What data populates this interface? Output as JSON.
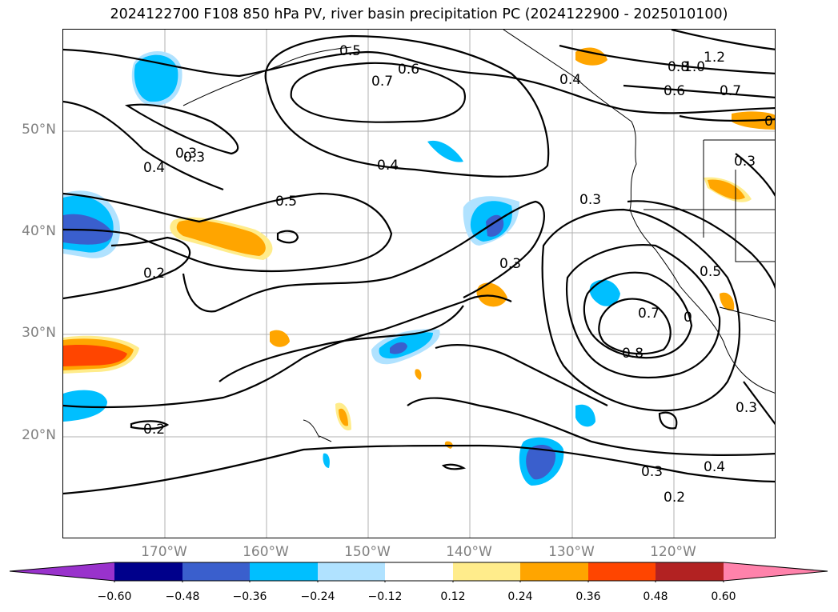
{
  "title": "2024122700 F108 850 hPa PV, river basin precipitation PC (2024122900 - 2025010100)",
  "latitude_labels": [
    "50°N",
    "40°N",
    "30°N",
    "20°N"
  ],
  "longitude_labels": [
    "170°W",
    "160°W",
    "150°W",
    "140°W",
    "130°W",
    "120°W"
  ],
  "pv_contour_labels": [
    "0.5",
    "0.6",
    "0.7",
    "0.4",
    "0.3",
    "0.4",
    "0.5",
    "0.2",
    "0.4",
    "0.3",
    "0.2",
    "0.3",
    "0.7",
    "0.8",
    "0.5",
    "0.3",
    "0.4",
    "0.3",
    "0.2",
    "0.8",
    "0.6",
    "0.7",
    "1.0",
    "1.2",
    "0.3",
    "0.3",
    "0",
    "0"
  ],
  "colorbar": {
    "ticks": [
      "−0.60",
      "−0.48",
      "−0.36",
      "−0.24",
      "−0.12",
      "0.12",
      "0.24",
      "0.36",
      "0.48",
      "0.60"
    ],
    "colors": [
      "#9932cc",
      "#00008b",
      "#3a5fcd",
      "#00bfff",
      "#b0e2ff",
      "#ffffff",
      "#ffec8b",
      "#ffa500",
      "#ff4500",
      "#b22222",
      "#ff82ab"
    ]
  }
}
